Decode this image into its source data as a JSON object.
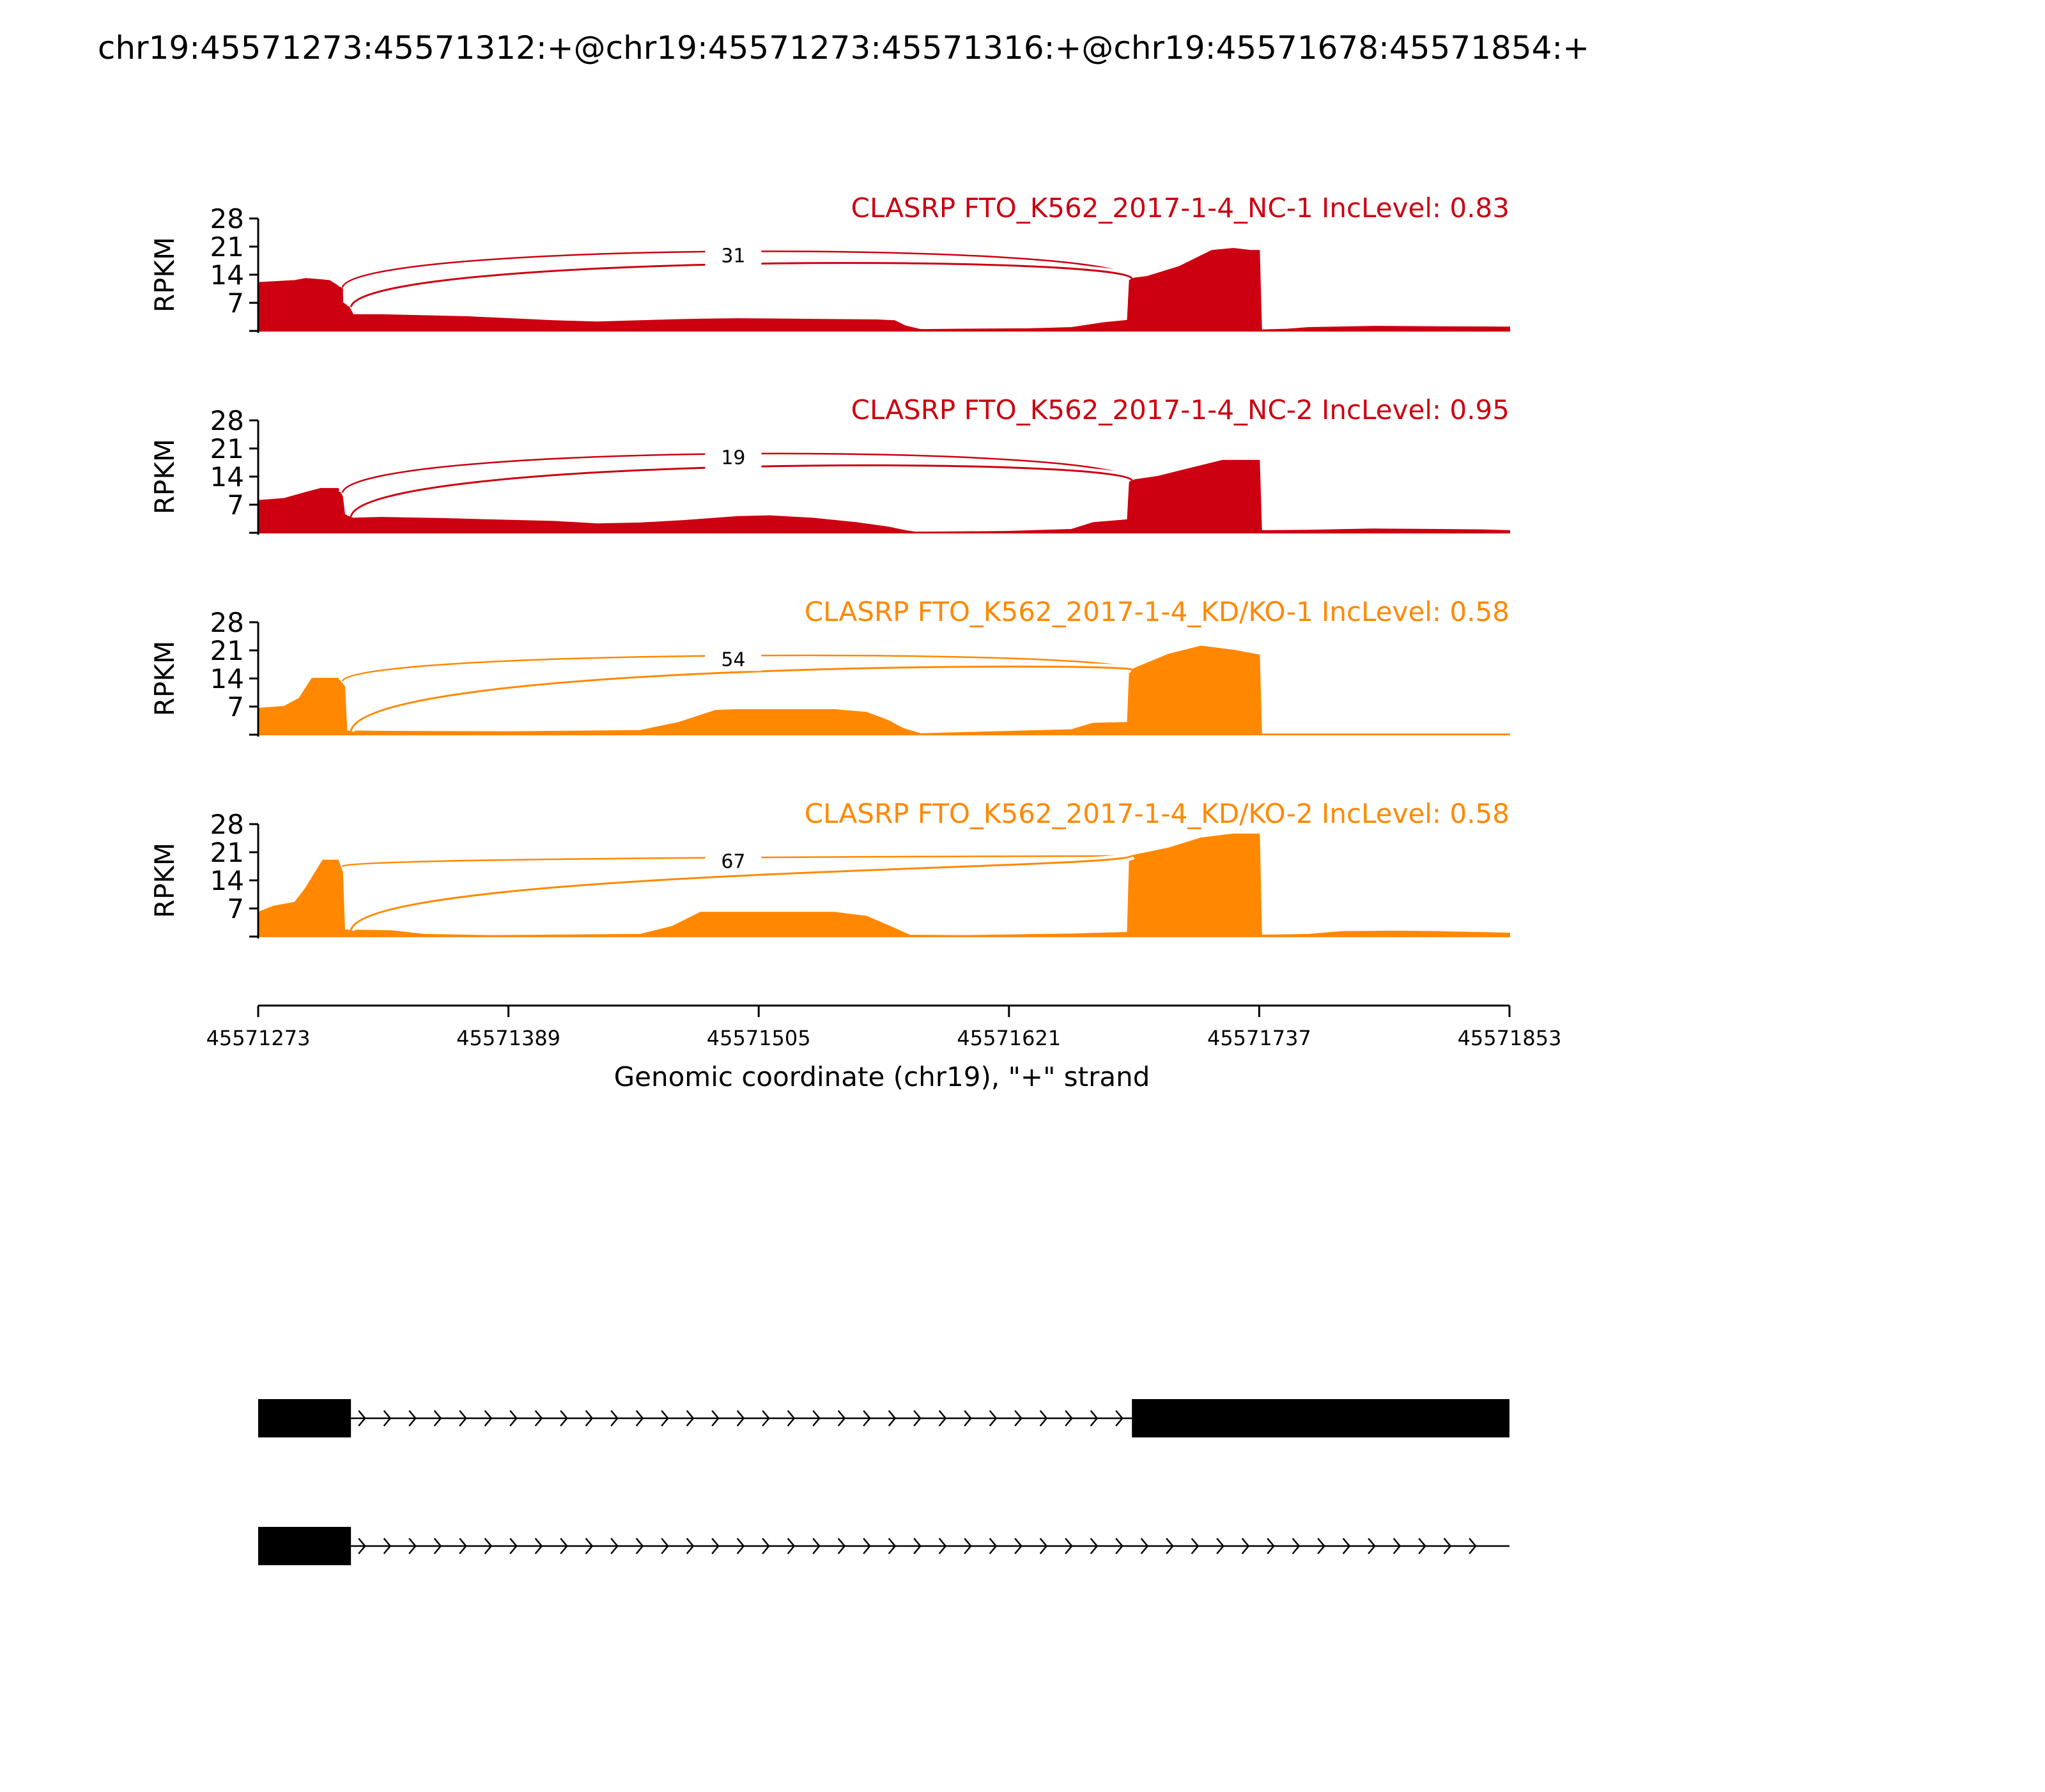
{
  "figure_title": "chr19:45571273:45571312:+@chr19:45571273:45571316:+@chr19:45571678:45571854:+",
  "chart_data": {
    "type": "area",
    "title": "chr19:45571273:45571312:+@chr19:45571273:45571316:+@chr19:45571678:45571854:+",
    "xlabel": "Genomic coordinate (chr19), \"+\" strand",
    "ylabel": "RPKM",
    "xlim": [
      45571273,
      45571853
    ],
    "ylim": [
      0,
      28
    ],
    "x_ticks": [
      45571273,
      45571389,
      45571505,
      45571621,
      45571737,
      45571853
    ],
    "y_ticks": [
      7,
      14,
      21,
      28
    ],
    "grid": false,
    "exon_regions": [
      [
        45571273,
        45571316
      ],
      [
        45571678,
        45571853
      ]
    ],
    "tracks": [
      {
        "name": "CLASRP FTO_K562_2017-1-4_NC-1 IncLevel: 0.83",
        "color": "#cc0011",
        "junction_count": "31",
        "points": [
          [
            45571273,
            12
          ],
          [
            45571290,
            12.5
          ],
          [
            45571295,
            13
          ],
          [
            45571300,
            12.8
          ],
          [
            45571306,
            12.5
          ],
          [
            45571312,
            10.5
          ],
          [
            45571312.1,
            7
          ],
          [
            45571315,
            6
          ],
          [
            45571317,
            4
          ],
          [
            45571330,
            4
          ],
          [
            45571370,
            3.5
          ],
          [
            45571410,
            2.5
          ],
          [
            45571430,
            2.2
          ],
          [
            45571450,
            2.5
          ],
          [
            45571470,
            2.8
          ],
          [
            45571480,
            2.9
          ],
          [
            45571495,
            3
          ],
          [
            45571520,
            2.9
          ],
          [
            45571560,
            2.7
          ],
          [
            45571568,
            2.5
          ],
          [
            45571573,
            1.2
          ],
          [
            45571580,
            0.3
          ],
          [
            45571600,
            0.4
          ],
          [
            45571630,
            0.5
          ],
          [
            45571650,
            0.8
          ],
          [
            45571665,
            2
          ],
          [
            45571676,
            2.6
          ],
          [
            45571677,
            13
          ],
          [
            45571685,
            13.5
          ],
          [
            45571700,
            16
          ],
          [
            45571715,
            20
          ],
          [
            45571725,
            20.5
          ],
          [
            45571733,
            20
          ],
          [
            45571737,
            20
          ],
          [
            45571738,
            0.2
          ],
          [
            45571750,
            0.4
          ],
          [
            45571760,
            0.8
          ],
          [
            45571790,
            1.1
          ],
          [
            45571820,
            1
          ],
          [
            45571853,
            0.9
          ]
        ]
      },
      {
        "name": "CLASRP FTO_K562_2017-1-4_NC-2 IncLevel: 0.95",
        "color": "#cc0011",
        "junction_count": "19",
        "points": [
          [
            45571273,
            8
          ],
          [
            45571285,
            8.5
          ],
          [
            45571295,
            10
          ],
          [
            45571302,
            11
          ],
          [
            45571310,
            11
          ],
          [
            45571312,
            9
          ],
          [
            45571313,
            4.5
          ],
          [
            45571317,
            3.6
          ],
          [
            45571330,
            3.8
          ],
          [
            45571360,
            3.5
          ],
          [
            45571380,
            3.2
          ],
          [
            45571410,
            2.8
          ],
          [
            45571430,
            2.2
          ],
          [
            45571450,
            2.4
          ],
          [
            45571470,
            3
          ],
          [
            45571495,
            4
          ],
          [
            45571510,
            4.2
          ],
          [
            45571530,
            3.6
          ],
          [
            45571550,
            2.5
          ],
          [
            45571565,
            1.4
          ],
          [
            45571573,
            0.5
          ],
          [
            45571578,
            0.1
          ],
          [
            45571620,
            0.3
          ],
          [
            45571650,
            0.8
          ],
          [
            45571660,
            2.5
          ],
          [
            45571676,
            3.2
          ],
          [
            45571677,
            13
          ],
          [
            45571690,
            14
          ],
          [
            45571705,
            16
          ],
          [
            45571720,
            18
          ],
          [
            45571737,
            18
          ],
          [
            45571738,
            0.5
          ],
          [
            45571760,
            0.6
          ],
          [
            45571790,
            0.9
          ],
          [
            45571820,
            0.8
          ],
          [
            45571840,
            0.7
          ],
          [
            45571853,
            0.5
          ]
        ]
      },
      {
        "name": "CLASRP FTO_K562_2017-1-4_KD/KO-1 IncLevel: 0.58",
        "color": "#ff8800",
        "junction_count": "54",
        "points": [
          [
            45571273,
            6.5
          ],
          [
            45571285,
            7
          ],
          [
            45571292,
            9
          ],
          [
            45571298,
            14
          ],
          [
            45571310,
            14
          ],
          [
            45571313,
            12
          ],
          [
            45571314,
            0.9
          ],
          [
            45571330,
            0.8
          ],
          [
            45571390,
            0.7
          ],
          [
            45571450,
            1
          ],
          [
            45571468,
            3
          ],
          [
            45571485,
            6
          ],
          [
            45571495,
            6.2
          ],
          [
            45571540,
            6.2
          ],
          [
            45571555,
            5.5
          ],
          [
            45571565,
            3.5
          ],
          [
            45571572,
            1.5
          ],
          [
            45571580,
            0.2
          ],
          [
            45571600,
            0.5
          ],
          [
            45571650,
            1.2
          ],
          [
            45571660,
            2.8
          ],
          [
            45571676,
            3
          ],
          [
            45571677,
            16
          ],
          [
            45571695,
            20
          ],
          [
            45571710,
            22
          ],
          [
            45571725,
            21
          ],
          [
            45571737,
            19.8
          ],
          [
            45571738,
            0.1
          ],
          [
            45571853,
            0.1
          ]
        ]
      },
      {
        "name": "CLASRP FTO_K562_2017-1-4_KD/KO-2 IncLevel: 0.58",
        "color": "#ff8800",
        "junction_count": "67",
        "points": [
          [
            45571273,
            6
          ],
          [
            45571280,
            7.5
          ],
          [
            45571290,
            8.5
          ],
          [
            45571295,
            12
          ],
          [
            45571303,
            19
          ],
          [
            45571310,
            19
          ],
          [
            45571312,
            16
          ],
          [
            45571313,
            1.6
          ],
          [
            45571335,
            1.4
          ],
          [
            45571350,
            0.5
          ],
          [
            45571380,
            0.2
          ],
          [
            45571450,
            0.5
          ],
          [
            45571465,
            2.5
          ],
          [
            45571478,
            6
          ],
          [
            45571540,
            6
          ],
          [
            45571555,
            5
          ],
          [
            45571568,
            2
          ],
          [
            45571575,
            0.3
          ],
          [
            45571600,
            0.2
          ],
          [
            45571650,
            0.6
          ],
          [
            45571676,
            1
          ],
          [
            45571677,
            20
          ],
          [
            45571695,
            22
          ],
          [
            45571710,
            24.5
          ],
          [
            45571725,
            25.5
          ],
          [
            45571737,
            25.5
          ],
          [
            45571738,
            0.3
          ],
          [
            45571760,
            0.5
          ],
          [
            45571775,
            1.2
          ],
          [
            45571800,
            1.3
          ],
          [
            45571820,
            1.2
          ],
          [
            45571853,
            0.8
          ]
        ]
      }
    ],
    "junctions": [
      {
        "from": 45571312,
        "to": 45571678,
        "height": 20
      },
      {
        "from": 45571316,
        "to": 45571678,
        "height": 17.5
      }
    ],
    "isoforms": [
      {
        "exons": [
          [
            45571273,
            45571316
          ],
          [
            45571678,
            45571853
          ]
        ],
        "intron": [
          45571316,
          45571678
        ]
      },
      {
        "exons": [
          [
            45571273,
            45571316
          ]
        ],
        "intron": [
          45571316,
          45571848
        ]
      }
    ]
  }
}
